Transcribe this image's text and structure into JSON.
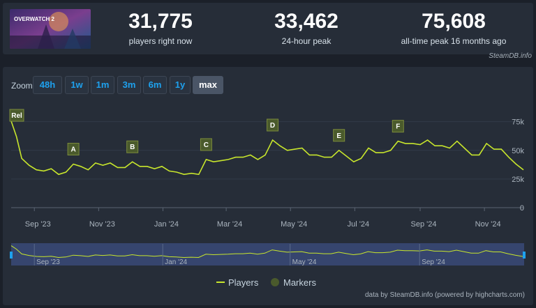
{
  "game": {
    "thumbnail_text": "OVERWATCH 2"
  },
  "stats": [
    {
      "value": "31,775",
      "label": "players right now"
    },
    {
      "value": "33,462",
      "label": "24-hour peak"
    },
    {
      "value": "75,608",
      "label": "all-time peak 16 months ago"
    }
  ],
  "credit": "SteamDB.info",
  "zoom": {
    "label": "Zoom",
    "buttons": [
      "48h",
      "1w",
      "1m",
      "3m",
      "6m",
      "1y",
      "max"
    ],
    "active": "max"
  },
  "legend": {
    "players": "Players",
    "markers": "Markers"
  },
  "source": "data by SteamDB.info (powered by highcharts.com)",
  "colors": {
    "series": "#c8e62c",
    "marker_fill": "#4a5a2c",
    "accent": "#1ea1ee"
  },
  "chart_data": {
    "type": "line",
    "ylim": [
      0,
      90000
    ],
    "yticks": [
      0,
      25000,
      50000,
      75000
    ],
    "ytick_labels": [
      "0",
      "25k",
      "50k",
      "75k"
    ],
    "xtick_labels": [
      "Sep '23",
      "Nov '23",
      "Jan '24",
      "Mar '24",
      "May '24",
      "Jul '24",
      "Sep '24",
      "Nov '24"
    ],
    "navigator_labels": [
      "Sep '23",
      "Jan '24",
      "May '24",
      "Sep '24"
    ],
    "series": [
      {
        "name": "Players",
        "x": [
          "2023-08-10",
          "2023-08-15",
          "2023-08-20",
          "2023-08-27",
          "2023-09-03",
          "2023-09-10",
          "2023-09-17",
          "2023-09-24",
          "2023-10-01",
          "2023-10-08",
          "2023-10-15",
          "2023-10-22",
          "2023-10-29",
          "2023-11-05",
          "2023-11-12",
          "2023-11-19",
          "2023-11-26",
          "2023-12-03",
          "2023-12-10",
          "2023-12-17",
          "2023-12-24",
          "2023-12-31",
          "2024-01-07",
          "2024-01-14",
          "2024-01-21",
          "2024-01-28",
          "2024-02-04",
          "2024-02-11",
          "2024-02-18",
          "2024-02-25",
          "2024-03-03",
          "2024-03-10",
          "2024-03-17",
          "2024-03-24",
          "2024-03-31",
          "2024-04-07",
          "2024-04-14",
          "2024-04-21",
          "2024-04-28",
          "2024-05-05",
          "2024-05-12",
          "2024-05-19",
          "2024-05-26",
          "2024-06-02",
          "2024-06-09",
          "2024-06-16",
          "2024-06-23",
          "2024-06-30",
          "2024-07-07",
          "2024-07-14",
          "2024-07-21",
          "2024-07-28",
          "2024-08-04",
          "2024-08-11",
          "2024-08-18",
          "2024-08-25",
          "2024-09-01",
          "2024-09-08",
          "2024-09-15",
          "2024-09-22",
          "2024-09-29",
          "2024-10-06",
          "2024-10-13",
          "2024-10-20",
          "2024-10-27",
          "2024-11-03",
          "2024-11-10",
          "2024-11-17",
          "2024-11-24",
          "2024-12-01",
          "2024-12-08"
        ],
        "values": [
          75608,
          62000,
          43000,
          37000,
          33000,
          32000,
          34000,
          29000,
          31000,
          38000,
          36000,
          33000,
          39000,
          37000,
          39000,
          35000,
          35000,
          40000,
          36000,
          36000,
          34000,
          36000,
          32000,
          31000,
          29000,
          30000,
          29000,
          42000,
          40000,
          41000,
          42000,
          44000,
          44000,
          46000,
          42000,
          46000,
          59000,
          54000,
          50000,
          51000,
          52000,
          46000,
          46000,
          44000,
          44000,
          50000,
          45000,
          40000,
          43000,
          52000,
          48000,
          48000,
          50000,
          58000,
          56000,
          56000,
          55000,
          59000,
          54000,
          54000,
          52000,
          58000,
          52000,
          46000,
          46000,
          56000,
          51000,
          51000,
          44000,
          38000,
          33000
        ]
      }
    ],
    "markers": [
      {
        "label": "Rel",
        "x": "2023-08-10"
      },
      {
        "label": "A",
        "x": "2023-10-08"
      },
      {
        "label": "B",
        "x": "2023-12-03"
      },
      {
        "label": "C",
        "x": "2024-02-11"
      },
      {
        "label": "D",
        "x": "2024-04-14"
      },
      {
        "label": "E",
        "x": "2024-06-16"
      },
      {
        "label": "F",
        "x": "2024-08-11"
      }
    ],
    "xtick_dates": [
      "2023-09-01",
      "2023-11-01",
      "2024-01-01",
      "2024-03-01",
      "2024-05-01",
      "2024-07-01",
      "2024-09-01",
      "2024-11-01"
    ],
    "navigator_dates": [
      "2023-09-01",
      "2024-01-01",
      "2024-05-01",
      "2024-09-01"
    ]
  }
}
